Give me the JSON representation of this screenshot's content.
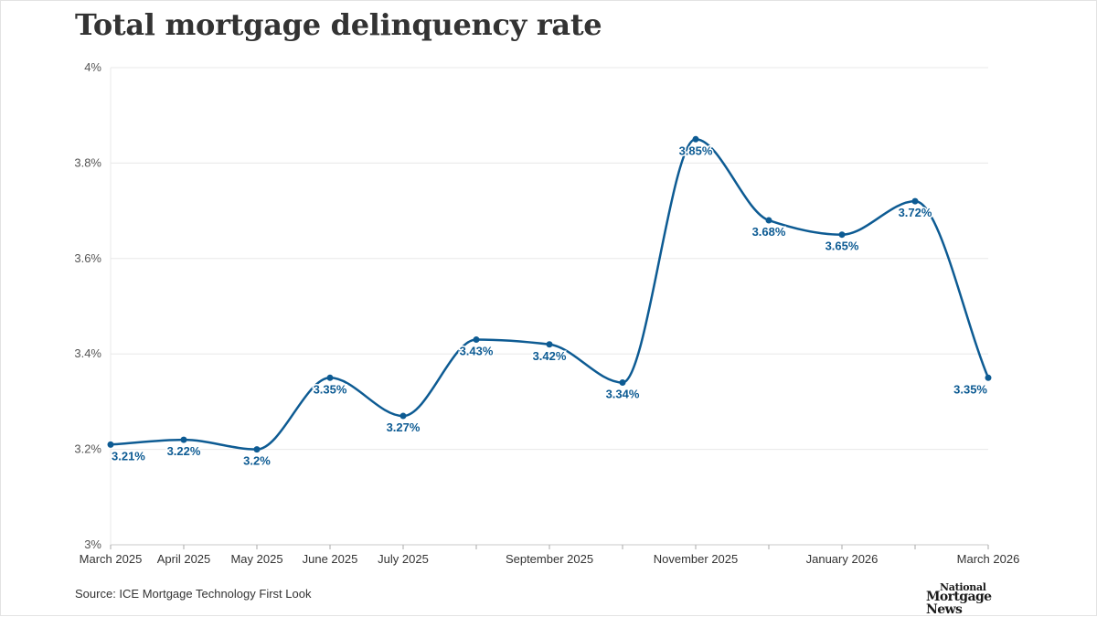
{
  "title": "Total mortgage delinquency rate",
  "source": "Source: ICE Mortgage Technology First Look",
  "logo": {
    "line1": "National",
    "line2": "Mortgage News"
  },
  "colors": {
    "line": "#0d5b93",
    "label": "#0d5b93",
    "grid": "#e8e8e8",
    "text": "#333333",
    "tick_text": "#555555"
  },
  "chart_data": {
    "type": "line",
    "title": "Total mortgage delinquency rate",
    "xlabel": "",
    "ylabel": "",
    "ylim": [
      3.0,
      4.0
    ],
    "grid": true,
    "curve": "smooth",
    "y_ticks": [
      {
        "value": 3.0,
        "label": "3%"
      },
      {
        "value": 3.2,
        "label": "3.2%"
      },
      {
        "value": 3.4,
        "label": "3.4%"
      },
      {
        "value": 3.6,
        "label": "3.6%"
      },
      {
        "value": 3.8,
        "label": "3.8%"
      },
      {
        "value": 4.0,
        "label": "4%"
      }
    ],
    "x_tick_labels": [
      {
        "index": 0,
        "label": "March 2025"
      },
      {
        "index": 1,
        "label": "April 2025"
      },
      {
        "index": 2,
        "label": "May 2025"
      },
      {
        "index": 3,
        "label": "June 2025"
      },
      {
        "index": 4,
        "label": "July 2025"
      },
      {
        "index": 6,
        "label": "September 2025"
      },
      {
        "index": 8,
        "label": "November 2025"
      },
      {
        "index": 10,
        "label": "January 2026"
      },
      {
        "index": 12,
        "label": "March 2026"
      }
    ],
    "points": [
      {
        "x": "2025-03",
        "y": 3.21,
        "label": "3.21%"
      },
      {
        "x": "2025-04",
        "y": 3.22,
        "label": "3.22%"
      },
      {
        "x": "2025-05",
        "y": 3.2,
        "label": "3.2%"
      },
      {
        "x": "2025-06",
        "y": 3.35,
        "label": "3.35%"
      },
      {
        "x": "2025-07",
        "y": 3.27,
        "label": "3.27%"
      },
      {
        "x": "2025-08",
        "y": 3.43,
        "label": "3.43%"
      },
      {
        "x": "2025-09",
        "y": 3.42,
        "label": "3.42%"
      },
      {
        "x": "2025-10",
        "y": 3.34,
        "label": "3.34%"
      },
      {
        "x": "2025-11",
        "y": 3.85,
        "label": "3.85%"
      },
      {
        "x": "2025-12",
        "y": 3.68,
        "label": "3.68%"
      },
      {
        "x": "2026-01",
        "y": 3.65,
        "label": "3.65%"
      },
      {
        "x": "2026-02",
        "y": 3.72,
        "label": "3.72%"
      },
      {
        "x": "2026-03",
        "y": 3.35,
        "label": "3.35%"
      }
    ]
  }
}
